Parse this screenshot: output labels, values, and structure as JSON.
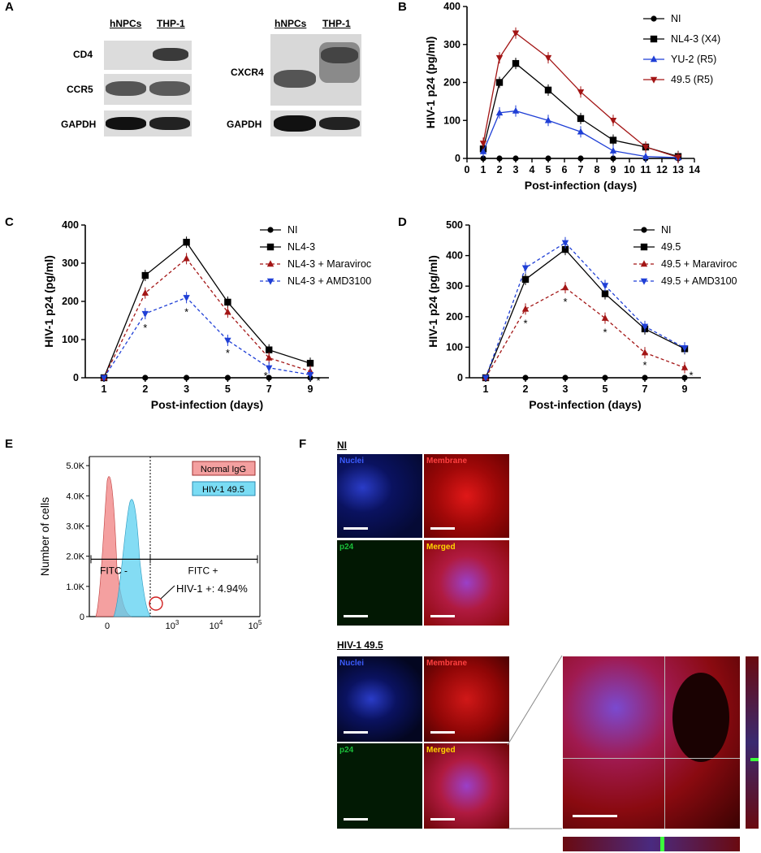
{
  "panels": {
    "A": "A",
    "B": "B",
    "C": "C",
    "D": "D",
    "E": "E",
    "F": "F"
  },
  "westernA": {
    "col1": "hNPCs",
    "col2": "THP-1",
    "rows": [
      "CD4",
      "CCR5",
      "GAPDH"
    ],
    "col3": "hNPCs",
    "col4": "THP-1",
    "rows2": [
      "CXCR4",
      "GAPDH"
    ]
  },
  "chart_data": [
    {
      "panel": "B",
      "type": "line",
      "xlabel": "Post-infection (days)",
      "ylabel": "HIV-1 p24 (pg/ml)",
      "xlim": [
        0,
        14
      ],
      "ylim": [
        0,
        400
      ],
      "xticks": [
        "0",
        "1",
        "2",
        "3",
        "4",
        "5",
        "6",
        "7",
        "8",
        "9",
        "10",
        "11",
        "12",
        "13",
        "14"
      ],
      "yticks": [
        "0",
        "100",
        "200",
        "300",
        "400"
      ],
      "series": [
        {
          "name": "NI",
          "color": "#000000",
          "marker": "circle",
          "x": [
            1,
            2,
            3,
            5,
            7,
            9,
            11,
            13
          ],
          "values": [
            0,
            0,
            0,
            0,
            0,
            0,
            0,
            0
          ]
        },
        {
          "name": "NL4-3 (X4)",
          "color": "#000000",
          "marker": "square",
          "x": [
            1,
            2,
            3,
            5,
            7,
            9,
            11,
            13
          ],
          "values": [
            25,
            200,
            250,
            180,
            105,
            48,
            30,
            5
          ]
        },
        {
          "name": "YU-2 (R5)",
          "color": "#1f3fd6",
          "marker": "triangle",
          "x": [
            1,
            2,
            3,
            5,
            7,
            9,
            11,
            13
          ],
          "values": [
            18,
            120,
            125,
            100,
            70,
            20,
            5,
            2
          ]
        },
        {
          "name": "49.5 (R5)",
          "color": "#a31515",
          "marker": "triangle-down",
          "x": [
            1,
            2,
            3,
            5,
            7,
            9,
            11,
            13
          ],
          "values": [
            40,
            265,
            330,
            265,
            175,
            100,
            30,
            3
          ]
        }
      ]
    },
    {
      "panel": "C",
      "type": "line",
      "xlabel": "Post-infection (days)",
      "ylabel": "HIV-1 p24 (pg/ml)",
      "ylim": [
        0,
        400
      ],
      "categories": [
        "1",
        "2",
        "3",
        "5",
        "7",
        "9"
      ],
      "yticks": [
        "0",
        "100",
        "200",
        "300",
        "400"
      ],
      "series": [
        {
          "name": "NI",
          "color": "#000000",
          "marker": "circle",
          "dash": false,
          "values": [
            0,
            0,
            0,
            0,
            0,
            0
          ]
        },
        {
          "name": "NL4-3",
          "color": "#000000",
          "marker": "square",
          "dash": false,
          "values": [
            0,
            268,
            355,
            198,
            73,
            38
          ]
        },
        {
          "name": "NL4-3 + Maraviroc",
          "color": "#a31515",
          "marker": "triangle",
          "dash": true,
          "values": [
            0,
            222,
            312,
            172,
            52,
            17
          ]
        },
        {
          "name": "NL4-3 + AMD3100",
          "color": "#1f3fd6",
          "marker": "triangle-down",
          "dash": true,
          "values": [
            0,
            168,
            210,
            98,
            26,
            8
          ]
        }
      ],
      "annotations": [
        "*",
        "*",
        "*",
        "*",
        "*"
      ]
    },
    {
      "panel": "D",
      "type": "line",
      "xlabel": "Post-infection (days)",
      "ylabel": "HIV-1 p24 (pg/ml)",
      "ylim": [
        0,
        500
      ],
      "categories": [
        "1",
        "2",
        "3",
        "5",
        "7",
        "9"
      ],
      "yticks": [
        "0",
        "100",
        "200",
        "300",
        "400",
        "500"
      ],
      "series": [
        {
          "name": "NI",
          "color": "#000000",
          "marker": "circle",
          "dash": false,
          "values": [
            0,
            0,
            0,
            0,
            0,
            0
          ]
        },
        {
          "name": "49.5",
          "color": "#000000",
          "marker": "square",
          "dash": false,
          "values": [
            0,
            322,
            420,
            275,
            160,
            95
          ]
        },
        {
          "name": "49.5 + Maraviroc",
          "color": "#a31515",
          "marker": "triangle",
          "dash": true,
          "values": [
            0,
            225,
            295,
            195,
            82,
            33
          ]
        },
        {
          "name": "49.5 + AMD3100",
          "color": "#1f3fd6",
          "marker": "triangle-down",
          "dash": true,
          "values": [
            0,
            360,
            442,
            302,
            168,
            98
          ]
        }
      ],
      "annotations": [
        "*",
        "*",
        "*",
        "*",
        "*"
      ]
    },
    {
      "panel": "E",
      "type": "area",
      "ylabel": "Number of cells",
      "yticks": [
        "0",
        "1.0K",
        "2.0K",
        "3.0K",
        "4.0K",
        "5.0K"
      ],
      "xticks": [
        "0",
        "10",
        "3",
        "10",
        "4",
        "10",
        "5"
      ],
      "series": [
        {
          "name": "Normal IgG",
          "color": "#f08080"
        },
        {
          "name": "HIV-1 49.5",
          "color": "#5bd0f0"
        }
      ],
      "gates": [
        "FITC -",
        "FITC +"
      ],
      "annotation": "HIV-1 +: 4.94%"
    }
  ],
  "panelF": {
    "group1": "NI",
    "group2": "HIV-1 49.5",
    "channels": [
      "Nuclei",
      "Membrane",
      "p24",
      "Merged"
    ]
  }
}
